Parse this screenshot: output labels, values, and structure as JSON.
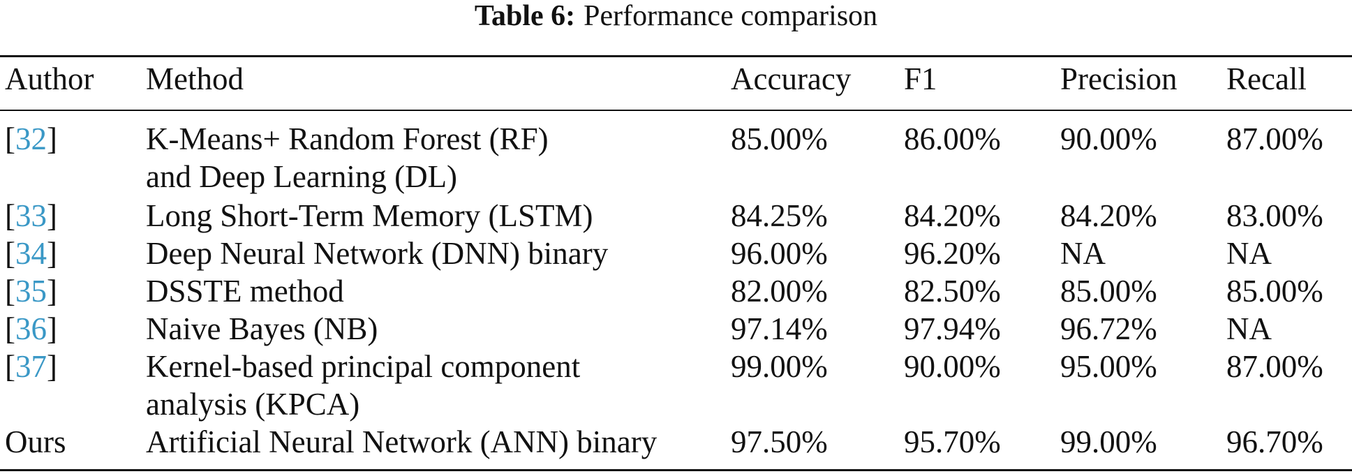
{
  "caption": {
    "label": "Table 6:",
    "text": "Performance comparison"
  },
  "table": {
    "headers": {
      "author": "Author",
      "method": "Method",
      "accuracy": "Accuracy",
      "f1": "F1",
      "precision": "Precision",
      "recall": "Recall"
    },
    "rows": [
      {
        "bracket_open": "[",
        "ref": "32",
        "bracket_close": "]",
        "author": "",
        "method": "K-Means+ Random Forest (RF) and Deep Learning (DL)",
        "accuracy": "85.00%",
        "f1": "86.00%",
        "precision": "90.00%",
        "recall": "87.00%"
      },
      {
        "bracket_open": "[",
        "ref": "33",
        "bracket_close": "]",
        "author": "",
        "method": "Long Short-Term Memory (LSTM)",
        "accuracy": "84.25%",
        "f1": "84.20%",
        "precision": "84.20%",
        "recall": "83.00%"
      },
      {
        "bracket_open": "[",
        "ref": "34",
        "bracket_close": "]",
        "author": "",
        "method": "Deep Neural Network (DNN) binary",
        "accuracy": "96.00%",
        "f1": "96.20%",
        "precision": "NA",
        "recall": "NA"
      },
      {
        "bracket_open": "[",
        "ref": "35",
        "bracket_close": "]",
        "author": "",
        "method": "DSSTE method",
        "accuracy": "82.00%",
        "f1": "82.50%",
        "precision": "85.00%",
        "recall": "85.00%"
      },
      {
        "bracket_open": "[",
        "ref": "36",
        "bracket_close": "]",
        "author": "",
        "method": "Naive Bayes (NB)",
        "accuracy": "97.14%",
        "f1": "97.94%",
        "precision": "96.72%",
        "recall": "NA"
      },
      {
        "bracket_open": "[",
        "ref": "37",
        "bracket_close": "]",
        "author": "",
        "method": "Kernel-based principal component analysis (KPCA)",
        "accuracy": "99.00%",
        "f1": "90.00%",
        "precision": "95.00%",
        "recall": "87.00%"
      },
      {
        "bracket_open": "",
        "ref": "",
        "bracket_close": "",
        "author": "Ours",
        "method": "Artificial Neural Network (ANN) binary",
        "accuracy": "97.50%",
        "f1": "95.70%",
        "precision": "99.00%",
        "recall": "96.70%"
      }
    ]
  }
}
